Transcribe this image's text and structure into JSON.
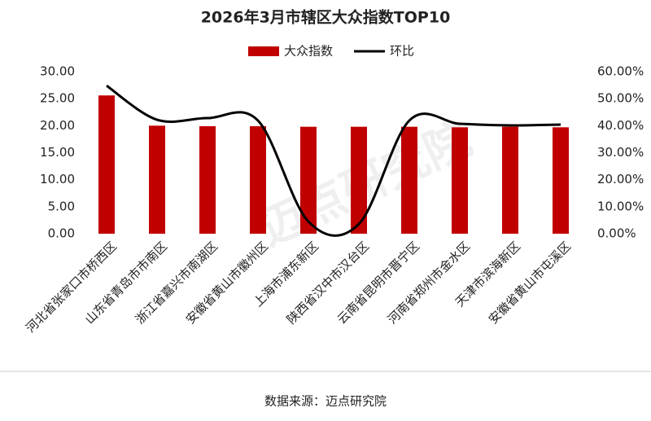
{
  "chart_data": {
    "type": "bar+line",
    "title": "2026年3月市辖区大众指数TOP10",
    "categories": [
      "河北省张家口市桥西区",
      "山东省青岛市市南区",
      "浙江省嘉兴市南湖区",
      "安徽省黄山市徽州区",
      "上海市浦东新区",
      "陕西省汉中市汉台区",
      "云南省昆明市晋宁区",
      "河南省郑州市金水区",
      "天津市滨海新区",
      "安徽省黄山市屯溪区"
    ],
    "series": [
      {
        "name": "大众指数",
        "type": "bar",
        "color": "#c00000",
        "values": [
          25.6,
          20.0,
          19.9,
          19.9,
          19.8,
          19.8,
          19.8,
          19.7,
          19.8,
          19.7
        ]
      },
      {
        "name": "环比",
        "type": "line",
        "axis": "y2",
        "color": "#000000",
        "values": [
          54.8,
          42.2,
          42.8,
          41.9,
          4.5,
          3.6,
          41.9,
          40.7,
          40.1,
          40.4
        ]
      }
    ],
    "ylim": [
      0,
      30
    ],
    "yticks": [
      {
        "value": 0,
        "label": "0.00"
      },
      {
        "value": 5,
        "label": "5.00"
      },
      {
        "value": 10,
        "label": "10.00"
      },
      {
        "value": 15,
        "label": "15.00"
      },
      {
        "value": 20,
        "label": "20.00"
      },
      {
        "value": 25,
        "label": "25.00"
      },
      {
        "value": 30,
        "label": "30.00"
      }
    ],
    "y2lim": [
      0,
      60
    ],
    "y2ticks": [
      {
        "value": 0,
        "label": "0.00%"
      },
      {
        "value": 10,
        "label": "10.00%"
      },
      {
        "value": 20,
        "label": "20.00%"
      },
      {
        "value": 30,
        "label": "30.00%"
      },
      {
        "value": 40,
        "label": "40.00%"
      },
      {
        "value": 50,
        "label": "50.00%"
      },
      {
        "value": 60,
        "label": "60.00%"
      }
    ],
    "legend": "top",
    "source": "数据来源：迈点研究院",
    "watermark": "迈点研究院"
  }
}
